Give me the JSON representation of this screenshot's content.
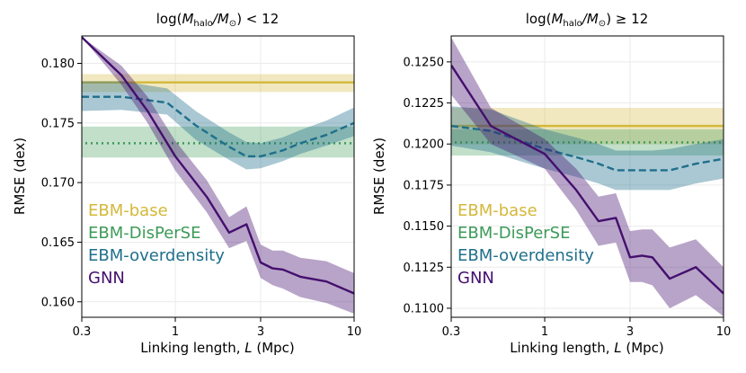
{
  "chart_data": [
    {
      "type": "line",
      "title_main": "log(",
      "title_sym": "M",
      "title_sub": "halo",
      "title_mid": "/M",
      "title_sun": "⊙",
      "title_end": ") < 12",
      "xlabel": "Linking length, L (Mpc)",
      "xlabel_pre": "Linking length, ",
      "xlabel_var": "L",
      "xlabel_post": " (Mpc)",
      "ylabel": "RMSE (dex)",
      "xscale": "log",
      "xlim": [
        0.3,
        10
      ],
      "ylim": [
        0.1587,
        0.1823
      ],
      "xticks": [
        0.3,
        1,
        3,
        10
      ],
      "xtick_labels": [
        "0.3",
        "1",
        "3",
        "10"
      ],
      "yticks": [
        0.16,
        0.165,
        0.17,
        0.175,
        0.18
      ],
      "ytick_labels": [
        "0.160",
        "0.165",
        "0.170",
        "0.175",
        "0.180"
      ],
      "grid": true,
      "legend_position": "lower-left",
      "series": [
        {
          "name": "EBM-base",
          "style": "solid-horizontal",
          "color": "#d4b83a",
          "value": 0.1784,
          "band": [
            0.1776,
            0.1791
          ]
        },
        {
          "name": "EBM-DisPerSE",
          "style": "dotted-horizontal",
          "color": "#3d9a58",
          "value": 0.1733,
          "band": [
            0.1721,
            0.1747
          ]
        },
        {
          "name": "EBM-overdensity",
          "style": "dashed",
          "color": "#1f6f8b",
          "x": [
            0.3,
            0.5,
            0.9,
            1.3,
            2.0,
            2.5,
            3.0,
            4.0,
            5.0,
            7.0,
            10.0
          ],
          "y": [
            0.1772,
            0.1772,
            0.1767,
            0.1748,
            0.173,
            0.1722,
            0.1722,
            0.1727,
            0.1733,
            0.174,
            0.175
          ],
          "lower": [
            0.176,
            0.1761,
            0.1757,
            0.1736,
            0.1719,
            0.1711,
            0.1712,
            0.1718,
            0.1724,
            0.1731,
            0.1739
          ],
          "upper": [
            0.1785,
            0.1785,
            0.1779,
            0.176,
            0.1742,
            0.1734,
            0.1733,
            0.1738,
            0.1744,
            0.1752,
            0.1763
          ]
        },
        {
          "name": "GNN",
          "style": "solid",
          "color": "#440f6e",
          "x": [
            0.3,
            0.5,
            0.7,
            1.0,
            1.5,
            2.0,
            2.5,
            3.0,
            3.5,
            4.0,
            5.0,
            7.0,
            10.0
          ],
          "y": [
            0.1822,
            0.179,
            0.176,
            0.1722,
            0.1688,
            0.1658,
            0.1665,
            0.1633,
            0.1628,
            0.1627,
            0.1621,
            0.1617,
            0.1607
          ],
          "lower": [
            0.1822,
            0.1782,
            0.175,
            0.171,
            0.1675,
            0.1645,
            0.1651,
            0.162,
            0.1614,
            0.1611,
            0.1604,
            0.1599,
            0.159
          ],
          "upper": [
            0.1822,
            0.1798,
            0.1772,
            0.1735,
            0.1702,
            0.1671,
            0.168,
            0.1648,
            0.1643,
            0.1643,
            0.1637,
            0.1634,
            0.1624
          ]
        }
      ]
    },
    {
      "type": "line",
      "title_main": "log(",
      "title_sym": "M",
      "title_sub": "halo",
      "title_mid": "/M",
      "title_sun": "⊙",
      "title_end": ")  ≥  12",
      "xlabel": "Linking length, L (Mpc)",
      "xlabel_pre": "Linking length, ",
      "xlabel_var": "L",
      "xlabel_post": " (Mpc)",
      "ylabel": "RMSE (dex)",
      "xscale": "log",
      "xlim": [
        0.3,
        10
      ],
      "ylim": [
        0.10945,
        0.12658
      ],
      "xticks": [
        0.3,
        1,
        3,
        10
      ],
      "xtick_labels": [
        "0.3",
        "1",
        "3",
        "10"
      ],
      "yticks": [
        0.11,
        0.1125,
        0.115,
        0.1175,
        0.12,
        0.1225,
        0.125
      ],
      "ytick_labels": [
        "0.1100",
        "0.1125",
        "0.1150",
        "0.1175",
        "0.1200",
        "0.1225",
        "0.1250"
      ],
      "grid": true,
      "legend_position": "lower-left",
      "series": [
        {
          "name": "EBM-base",
          "style": "solid-horizontal",
          "color": "#d4b83a",
          "value": 0.1211,
          "band": [
            0.12,
            0.1222
          ]
        },
        {
          "name": "EBM-DisPerSE",
          "style": "dotted-horizontal",
          "color": "#3d9a58",
          "value": 0.1201,
          "band": [
            0.1193,
            0.1209
          ]
        },
        {
          "name": "EBM-overdensity",
          "style": "dashed",
          "color": "#1f6f8b",
          "x": [
            0.3,
            0.5,
            1.0,
            1.5,
            2.0,
            2.5,
            3.0,
            4.0,
            5.0,
            7.0,
            10.0
          ],
          "y": [
            0.1211,
            0.1208,
            0.1197,
            0.1192,
            0.1188,
            0.1184,
            0.1184,
            0.1184,
            0.1184,
            0.1188,
            0.1191
          ],
          "lower": [
            0.1199,
            0.1195,
            0.1185,
            0.118,
            0.1176,
            0.1172,
            0.1172,
            0.1172,
            0.1172,
            0.1176,
            0.1179
          ],
          "upper": [
            0.1223,
            0.1221,
            0.1209,
            0.1204,
            0.12,
            0.1196,
            0.1196,
            0.1196,
            0.1197,
            0.12,
            0.1203
          ]
        },
        {
          "name": "GNN",
          "style": "solid",
          "color": "#440f6e",
          "x": [
            0.3,
            0.5,
            1.0,
            1.5,
            2.0,
            2.5,
            3.0,
            3.5,
            4.0,
            5.0,
            7.0,
            10.0
          ],
          "y": [
            0.1248,
            0.1211,
            0.1194,
            0.1172,
            0.1153,
            0.1155,
            0.1131,
            0.1132,
            0.1131,
            0.1118,
            0.1125,
            0.1109
          ],
          "lower": [
            0.123,
            0.12,
            0.1185,
            0.116,
            0.1138,
            0.114,
            0.1116,
            0.1116,
            0.1114,
            0.11,
            0.1108,
            0.1095
          ],
          "upper": [
            0.1265,
            0.1222,
            0.1203,
            0.1185,
            0.1168,
            0.117,
            0.1147,
            0.1148,
            0.1148,
            0.1137,
            0.1142,
            0.1125
          ]
        }
      ]
    }
  ]
}
